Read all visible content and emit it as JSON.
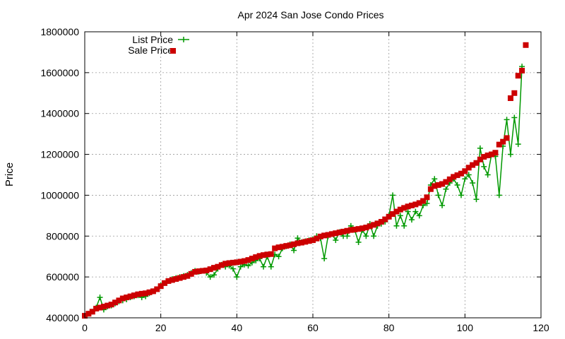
{
  "chart_data": {
    "type": "line",
    "title": "Apr 2024 San Jose Condo Prices",
    "xlabel": "",
    "ylabel": "Price",
    "xlim": [
      0,
      120
    ],
    "ylim": [
      400000,
      1800000
    ],
    "x_ticks": [
      0,
      20,
      40,
      60,
      80,
      100,
      120
    ],
    "y_ticks": [
      400000,
      600000,
      800000,
      1000000,
      1200000,
      1400000,
      1600000,
      1800000
    ],
    "grid": true,
    "legend_position": "top-left",
    "series": [
      {
        "name": "List Price",
        "style": "line-with-plus-markers",
        "color": "#009900",
        "values": [
          410000,
          420000,
          430000,
          450000,
          500000,
          440000,
          455000,
          460000,
          470000,
          480000,
          485000,
          490000,
          500000,
          505000,
          510000,
          500000,
          505000,
          520000,
          530000,
          540000,
          560000,
          570000,
          580000,
          590000,
          595000,
          600000,
          605000,
          610000,
          620000,
          630000,
          625000,
          630000,
          620000,
          600000,
          610000,
          640000,
          660000,
          650000,
          655000,
          640000,
          600000,
          650000,
          660000,
          655000,
          670000,
          680000,
          690000,
          650000,
          700000,
          650000,
          710000,
          700000,
          740000,
          750000,
          760000,
          730000,
          790000,
          770000,
          775000,
          780000,
          785000,
          800000,
          790000,
          690000,
          800000,
          810000,
          780000,
          820000,
          800000,
          800000,
          850000,
          830000,
          770000,
          830000,
          800000,
          860000,
          800000,
          850000,
          860000,
          870000,
          900000,
          1000000,
          850000,
          900000,
          850000,
          920000,
          880000,
          920000,
          900000,
          950000,
          960000,
          1050000,
          1080000,
          1000000,
          950000,
          1030000,
          1060000,
          1080000,
          1050000,
          1000000,
          1080000,
          1100000,
          1060000,
          980000,
          1230000,
          1140000,
          1100000,
          1200000,
          1190000,
          1000000,
          1240000,
          1370000,
          1200000,
          1380000,
          1250000,
          1630000
        ]
      },
      {
        "name": "Sale Price",
        "style": "square-markers",
        "color": "#cc0000",
        "values": [
          410000,
          420000,
          430000,
          445000,
          450000,
          455000,
          460000,
          465000,
          475000,
          485000,
          495000,
          500000,
          505000,
          510000,
          515000,
          518000,
          520000,
          525000,
          530000,
          540000,
          555000,
          570000,
          580000,
          585000,
          590000,
          595000,
          600000,
          605000,
          615000,
          625000,
          628000,
          630000,
          632000,
          638000,
          645000,
          650000,
          658000,
          665000,
          668000,
          670000,
          672000,
          675000,
          678000,
          683000,
          690000,
          697000,
          703000,
          707000,
          710000,
          712000,
          740000,
          745000,
          748000,
          752000,
          755000,
          760000,
          765000,
          768000,
          772000,
          776000,
          780000,
          788000,
          798000,
          803000,
          806000,
          810000,
          814000,
          818000,
          822000,
          826000,
          830000,
          832000,
          835000,
          838000,
          842000,
          848000,
          855000,
          862000,
          870000,
          882000,
          895000,
          908000,
          920000,
          930000,
          938000,
          945000,
          950000,
          955000,
          962000,
          972000,
          990000,
          1030000,
          1045000,
          1050000,
          1055000,
          1065000,
          1078000,
          1090000,
          1098000,
          1106000,
          1118000,
          1135000,
          1148000,
          1158000,
          1175000,
          1188000,
          1195000,
          1200000,
          1208000,
          1248000,
          1262000,
          1280000,
          1475000,
          1500000,
          1585000,
          1610000,
          1735000
        ]
      }
    ]
  }
}
